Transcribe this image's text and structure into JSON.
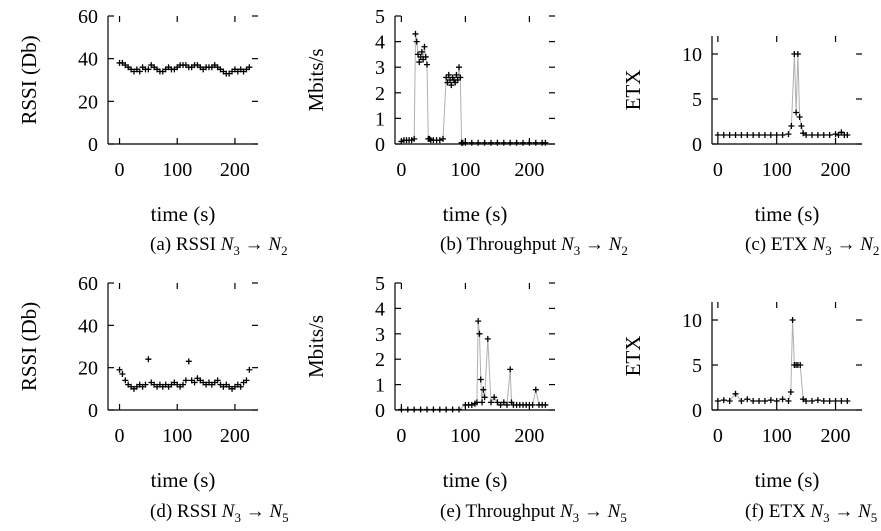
{
  "chart_data": [
    {
      "id": "a",
      "type": "scatter",
      "caption": {
        "prefix": "(a) RSSI ",
        "from": "N",
        "from_sub": "3",
        "arrow": "→",
        "to": "N",
        "to_sub": "2"
      },
      "ylabel": "RSSI (Db)",
      "xlabel": "time (s)",
      "xlim": [
        -20,
        240
      ],
      "ylim": [
        0,
        60
      ],
      "xticks": [
        0,
        100,
        200
      ],
      "yticks": [
        0,
        20,
        40,
        60
      ],
      "color": "#000000",
      "x": [
        0,
        5,
        10,
        15,
        20,
        25,
        30,
        35,
        40,
        45,
        50,
        55,
        60,
        65,
        70,
        75,
        80,
        85,
        90,
        95,
        100,
        105,
        110,
        115,
        120,
        125,
        130,
        135,
        140,
        145,
        150,
        155,
        160,
        165,
        170,
        175,
        180,
        185,
        190,
        195,
        200,
        205,
        210,
        215,
        220,
        225
      ],
      "y": [
        38,
        38,
        37,
        36,
        35,
        34,
        35,
        34,
        36,
        35,
        35,
        37,
        36,
        35,
        34,
        34,
        35,
        36,
        35,
        35,
        36,
        37,
        37,
        37,
        36,
        36,
        37,
        37,
        36,
        35,
        36,
        36,
        36,
        37,
        36,
        35,
        34,
        33,
        33,
        34,
        35,
        34,
        35,
        34,
        35,
        36
      ]
    },
    {
      "id": "b",
      "type": "line",
      "caption": {
        "prefix": "(b) Throughput ",
        "from": "N",
        "from_sub": "3",
        "arrow": "→",
        "to": "N",
        "to_sub": "2"
      },
      "ylabel": "Mbits/s",
      "xlabel": "time (s)",
      "xlim": [
        -10,
        240
      ],
      "ylim": [
        0,
        5
      ],
      "xticks": [
        0,
        100,
        200
      ],
      "yticks": [
        0,
        1,
        2,
        3,
        4,
        5
      ],
      "color": "#000000",
      "x": [
        0,
        4,
        8,
        12,
        16,
        20,
        22,
        24,
        26,
        28,
        30,
        32,
        34,
        36,
        38,
        40,
        42,
        44,
        46,
        50,
        55,
        60,
        65,
        70,
        72,
        74,
        76,
        78,
        80,
        82,
        84,
        86,
        88,
        90,
        92,
        94,
        96,
        100,
        110,
        120,
        130,
        140,
        150,
        160,
        170,
        180,
        190,
        200,
        210,
        220,
        225
      ],
      "y": [
        0.1,
        0.15,
        0.15,
        0.15,
        0.15,
        0.2,
        4.3,
        4.0,
        3.5,
        3.2,
        3.4,
        3.6,
        3.3,
        3.8,
        3.4,
        3.1,
        0.2,
        0.2,
        0.15,
        0.15,
        0.15,
        0.15,
        0.2,
        2.6,
        2.4,
        2.7,
        2.5,
        2.3,
        2.6,
        2.5,
        2.4,
        2.7,
        2.5,
        3.0,
        2.6,
        0.05,
        0.05,
        0.05,
        0.05,
        0.05,
        0.05,
        0.05,
        0.05,
        0.05,
        0.05,
        0.05,
        0.05,
        0.05,
        0.05,
        0.05,
        0.05
      ]
    },
    {
      "id": "c",
      "type": "line",
      "caption": {
        "prefix": "(c) ETX ",
        "from": "N",
        "from_sub": "3",
        "arrow": "→",
        "to": "N",
        "to_sub": "2"
      },
      "ylabel": "ETX",
      "xlabel": "time (s)",
      "xlim": [
        -10,
        245
      ],
      "ylim": [
        0,
        12
      ],
      "xticks": [
        0,
        100,
        200
      ],
      "yticks": [
        0,
        5,
        10
      ],
      "color": "#000000",
      "x": [
        0,
        10,
        20,
        30,
        40,
        50,
        60,
        70,
        80,
        90,
        100,
        110,
        120,
        125,
        130,
        133,
        136,
        139,
        142,
        145,
        150,
        160,
        170,
        180,
        190,
        200,
        205,
        210,
        215,
        220
      ],
      "y": [
        1,
        1,
        1,
        1,
        1,
        1,
        1,
        1,
        1,
        1,
        1,
        1,
        1.1,
        2,
        10,
        3.5,
        10,
        3,
        2,
        1.2,
        1,
        1,
        1,
        1,
        1,
        1.1,
        1,
        1.3,
        1,
        1
      ]
    },
    {
      "id": "d",
      "type": "scatter",
      "caption": {
        "prefix": "(d) RSSI ",
        "from": "N",
        "from_sub": "3",
        "arrow": "→",
        "to": "N",
        "to_sub": "5"
      },
      "ylabel": "RSSI (Db)",
      "xlabel": "time (s)",
      "xlim": [
        -20,
        240
      ],
      "ylim": [
        0,
        60
      ],
      "xticks": [
        0,
        100,
        200
      ],
      "yticks": [
        0,
        20,
        40,
        60
      ],
      "color": "#000000",
      "x": [
        0,
        5,
        10,
        15,
        20,
        25,
        30,
        35,
        40,
        45,
        50,
        55,
        60,
        65,
        70,
        75,
        80,
        85,
        90,
        95,
        100,
        105,
        110,
        115,
        120,
        125,
        130,
        135,
        140,
        145,
        150,
        155,
        160,
        165,
        170,
        175,
        180,
        185,
        190,
        195,
        200,
        205,
        210,
        215,
        220,
        225
      ],
      "y": [
        19,
        17,
        14,
        12,
        11,
        10,
        11,
        12,
        11,
        12,
        24,
        13,
        12,
        11,
        12,
        11,
        12,
        11,
        12,
        13,
        12,
        11,
        12,
        14,
        23,
        14,
        13,
        15,
        14,
        13,
        12,
        13,
        12,
        13,
        14,
        12,
        11,
        12,
        11,
        10,
        11,
        12,
        11,
        13,
        14,
        19
      ]
    },
    {
      "id": "e",
      "type": "line",
      "caption": {
        "prefix": "(e) Throughput ",
        "from": "N",
        "from_sub": "3",
        "arrow": "→",
        "to": "N",
        "to_sub": "5"
      },
      "ylabel": "Mbits/s",
      "xlabel": "time (s)",
      "xlim": [
        -10,
        240
      ],
      "ylim": [
        0,
        5
      ],
      "xticks": [
        0,
        100,
        200
      ],
      "yticks": [
        0,
        1,
        2,
        3,
        4,
        5
      ],
      "color": "#000000",
      "x": [
        0,
        10,
        20,
        30,
        40,
        50,
        60,
        70,
        80,
        90,
        100,
        105,
        110,
        115,
        118,
        120,
        122,
        124,
        126,
        128,
        130,
        135,
        140,
        145,
        150,
        155,
        160,
        165,
        170,
        172,
        175,
        180,
        185,
        190,
        195,
        200,
        205,
        210,
        215,
        220,
        225
      ],
      "y": [
        0.02,
        0.02,
        0.02,
        0.02,
        0.02,
        0.02,
        0.02,
        0.02,
        0.02,
        0.02,
        0.2,
        0.2,
        0.2,
        0.25,
        0.3,
        3.5,
        3.0,
        1.2,
        0.3,
        0.8,
        0.5,
        2.8,
        0.3,
        0.5,
        0.3,
        0.2,
        0.3,
        0.2,
        1.6,
        0.3,
        0.2,
        0.2,
        0.2,
        0.2,
        0.2,
        0.2,
        0.2,
        0.8,
        0.2,
        0.2,
        0.2
      ]
    },
    {
      "id": "f",
      "type": "line",
      "caption": {
        "prefix": "(f) ETX ",
        "from": "N",
        "from_sub": "3",
        "arrow": "→",
        "to": "N",
        "to_sub": "5"
      },
      "ylabel": "ETX",
      "xlabel": "time (s)",
      "xlim": [
        -10,
        245
      ],
      "ylim": [
        0,
        12
      ],
      "xticks": [
        0,
        100,
        200
      ],
      "yticks": [
        0,
        5,
        10
      ],
      "color": "#000000",
      "x": [
        0,
        10,
        20,
        30,
        40,
        50,
        60,
        70,
        80,
        90,
        100,
        110,
        120,
        124,
        127,
        130,
        133,
        136,
        140,
        145,
        150,
        160,
        170,
        180,
        190,
        200,
        210,
        220
      ],
      "y": [
        1,
        1.1,
        1,
        1.8,
        1,
        1.2,
        1,
        1,
        1,
        1.1,
        1,
        1.2,
        1,
        2,
        10,
        5,
        5,
        5,
        5,
        1.2,
        1,
        1,
        1.1,
        1,
        1,
        1,
        1,
        1
      ]
    }
  ]
}
